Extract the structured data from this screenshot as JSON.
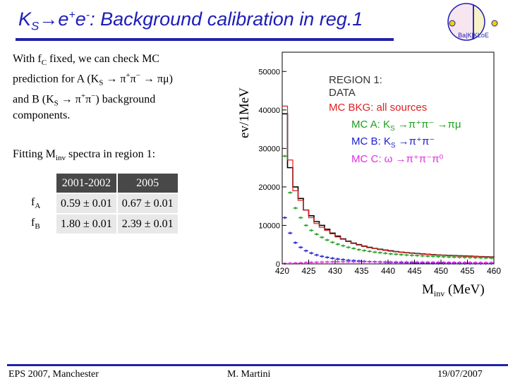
{
  "title": {
    "k": "K",
    "s": "S",
    "arrow": "→",
    "e1": "e",
    "plus": "+",
    "e2": "e",
    "minus": "-",
    "rest": ": Background calibration in reg.1"
  },
  "logo": {
    "label": "Ba|K|KLoE"
  },
  "intro": {
    "l1a": "With f",
    "l1sub": "C",
    "l1b": " fixed, we can check MC",
    "l2a": "prediction for A (K",
    "l2sub": "S",
    "l2b": " → π",
    "l2sup1": "+",
    "l2c": "π",
    "l2sup2": "−",
    "l2d": " → πμ)",
    "l3a": "and B (K",
    "l3sub": "S",
    "l3b": " → π",
    "l3sup1": "+",
    "l3c": "π",
    "l3sup2": "−",
    "l3d": ") background",
    "l4": "components."
  },
  "fit_label": {
    "a": "Fitting M",
    "sub": "inv",
    "b": " spectra in region 1:"
  },
  "table": {
    "headers": [
      "2001-2002",
      "2005"
    ],
    "rows": [
      {
        "f": "f",
        "sub": "A",
        "v1": "0.59 ± 0.01",
        "v2": "0.67 ± 0.01"
      },
      {
        "f": "f",
        "sub": "B",
        "v1": "1.80 ± 0.01",
        "v2": "2.39 ± 0.01"
      }
    ]
  },
  "legend": {
    "l1": "REGION 1:",
    "l2": "DATA",
    "l3": "MC BKG: all sources",
    "l4": "MC A: K",
    "l4s": "S",
    "l4b": " →π⁺π⁻ →πμ",
    "l5": "MC B: K",
    "l5s": "S",
    "l5b": " →π⁺π⁻",
    "l6": "MC C: ω →π⁺π⁻π⁰"
  },
  "plot_labels": {
    "ylabel": "ev/1MeV",
    "xlabel": "M",
    "xlabel_sub": "inv",
    "xlabel_unit": " (MeV)"
  },
  "colors": {
    "data": "#000000",
    "all": "#e02020",
    "mcA": "#20a020",
    "mcB": "#2020d0",
    "mcC": "#e030e0",
    "accent": "#1d1db8"
  },
  "chart_data": {
    "type": "line",
    "x": [
      420,
      421,
      422,
      423,
      424,
      425,
      426,
      427,
      428,
      429,
      430,
      431,
      432,
      433,
      434,
      435,
      436,
      437,
      438,
      439,
      440,
      441,
      442,
      443,
      444,
      445,
      446,
      447,
      448,
      449,
      450,
      451,
      452,
      453,
      454,
      455,
      456,
      457,
      458,
      459,
      460
    ],
    "series": [
      {
        "name": "DATA",
        "values": [
          39000,
          25000,
          20000,
          17000,
          14000,
          12500,
          11000,
          10000,
          9000,
          8000,
          7200,
          6500,
          5900,
          5400,
          5000,
          4600,
          4300,
          4000,
          3800,
          3600,
          3400,
          3200,
          3050,
          2900,
          2800,
          2700,
          2600,
          2500,
          2400,
          2300,
          2250,
          2200,
          2150,
          2100,
          2050,
          2000,
          1950,
          1900,
          1850,
          1800,
          1750
        ]
      },
      {
        "name": "MC BKG: all sources",
        "values": [
          41000,
          27000,
          19000,
          16500,
          14000,
          12000,
          10500,
          9500,
          8700,
          7800,
          7000,
          6400,
          5800,
          5300,
          4900,
          4500,
          4200,
          3950,
          3700,
          3500,
          3300,
          3150,
          3000,
          2850,
          2750,
          2650,
          2550,
          2450,
          2350,
          2280,
          2220,
          2160,
          2100,
          2050,
          2000,
          1950,
          1900,
          1860,
          1820,
          1780,
          1740
        ]
      },
      {
        "name": "MC A: KS →π⁺π⁻ →πμ",
        "values": [
          28000,
          18500,
          14500,
          12000,
          10000,
          8700,
          7700,
          6900,
          6200,
          5600,
          5100,
          4700,
          4300,
          4000,
          3700,
          3450,
          3250,
          3050,
          2900,
          2750,
          2600,
          2500,
          2400,
          2300,
          2220,
          2150,
          2080,
          2010,
          1950,
          1900,
          1850,
          1800,
          1760,
          1720,
          1680,
          1640,
          1600,
          1570,
          1540,
          1510,
          1480
        ]
      },
      {
        "name": "MC B: KS →π⁺π⁻",
        "values": [
          12000,
          8000,
          5500,
          4300,
          3400,
          2800,
          2300,
          1950,
          1700,
          1450,
          1250,
          1100,
          950,
          850,
          750,
          650,
          580,
          520,
          470,
          420,
          380,
          340,
          310,
          280,
          260,
          240,
          220,
          200,
          185,
          170,
          160,
          150,
          140,
          130,
          120,
          110,
          100,
          95,
          90,
          85,
          80
        ]
      },
      {
        "name": "MC C: ω →π⁺π⁻π⁰",
        "values": [
          100,
          150,
          200,
          260,
          320,
          380,
          430,
          470,
          500,
          520,
          540,
          550,
          560,
          560,
          560,
          555,
          550,
          540,
          530,
          520,
          510,
          500,
          490,
          480,
          470,
          460,
          450,
          440,
          430,
          420,
          410,
          400,
          390,
          380,
          370,
          360,
          350,
          340,
          330,
          320,
          310
        ]
      }
    ],
    "xlim": [
      420,
      460
    ],
    "ylim": [
      0,
      55000
    ],
    "xticks": [
      420,
      425,
      430,
      435,
      440,
      445,
      450,
      455,
      460
    ],
    "yticks": [
      0,
      10000,
      20000,
      30000,
      40000,
      50000
    ],
    "ytick_labels": [
      "0",
      "10000",
      "20000",
      "30000",
      "40000",
      "50000"
    ],
    "legend_position": "top-right"
  },
  "footer": {
    "left": "EPS 2007, Manchester",
    "center": "M. Martini",
    "right": "19/07/2007"
  }
}
